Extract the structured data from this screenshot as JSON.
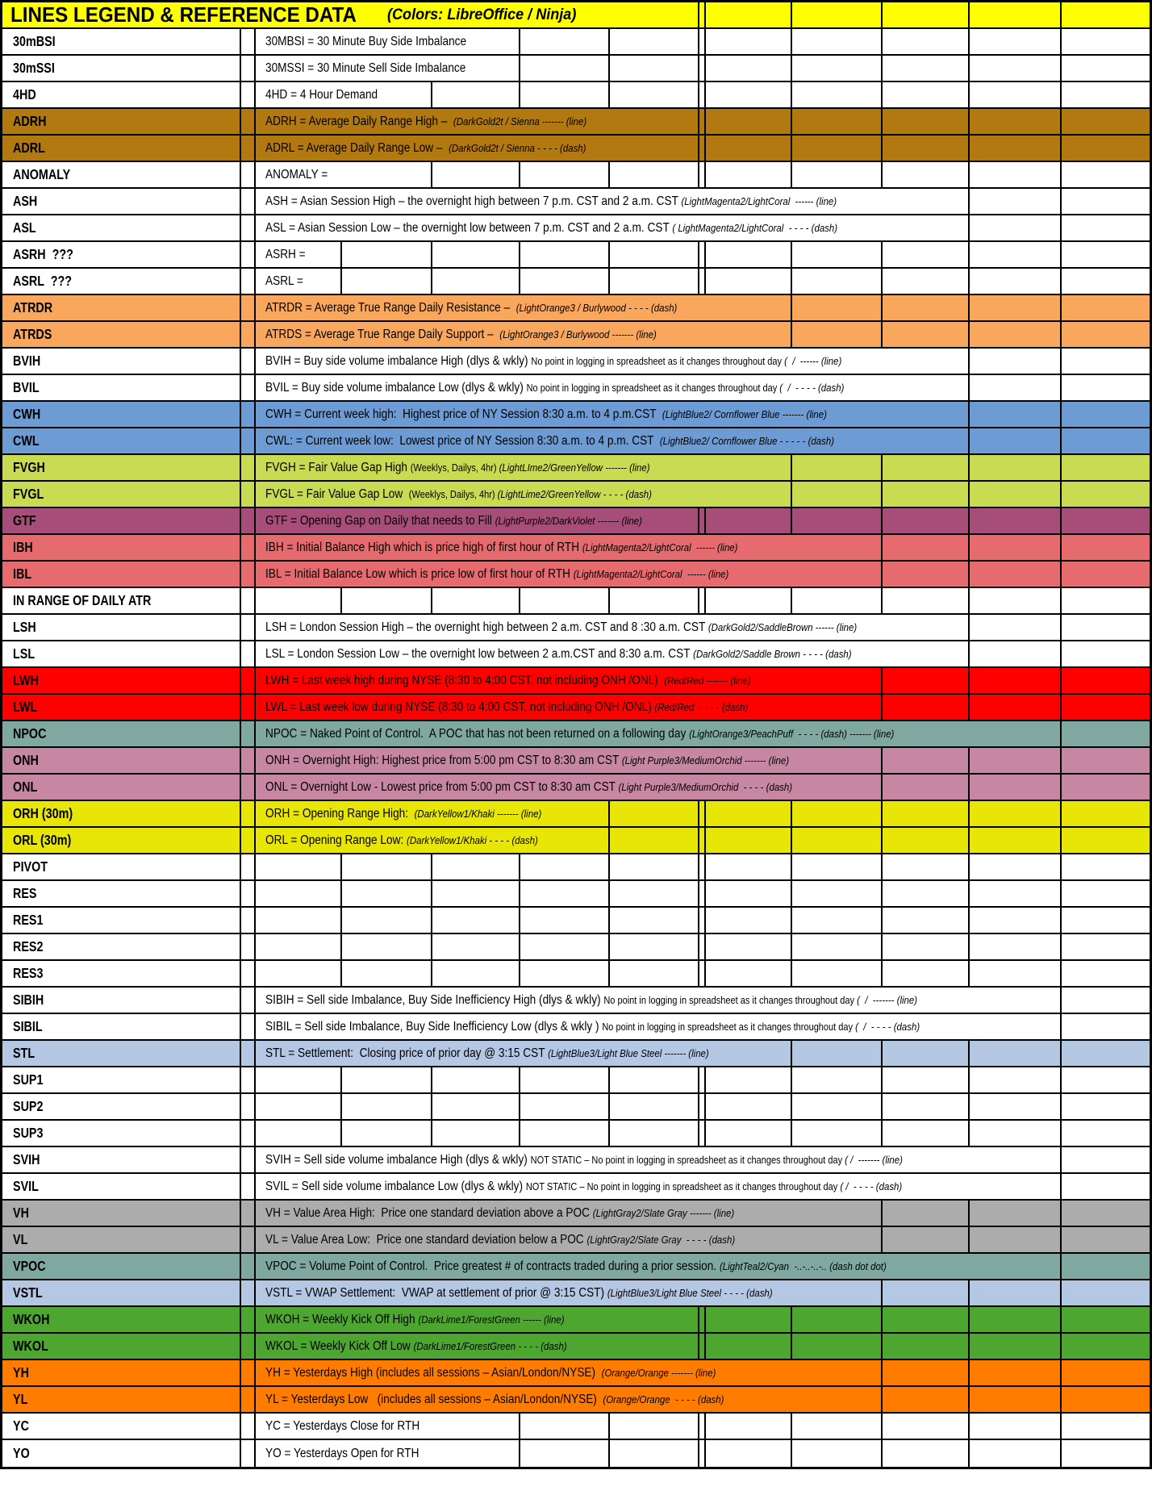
{
  "sheet": {
    "title": "LINES LEGEND & REFERENCE DATA",
    "subtitle": "(Colors: LibreOffice / Ninja)",
    "header_bg": "#FFFF00",
    "header_desc_end": 864,
    "label_col_end": 296,
    "gutter_col_end": 314,
    "grid_boundaries": [
      421,
      533,
      642,
      753,
      864,
      872,
      979,
      1091,
      1199,
      1313
    ],
    "grid_color": "#000000"
  },
  "rows": [
    {
      "code": "30mBSI",
      "bg": "#FFFFFF",
      "desc_end": 642,
      "segments": [
        [
          "m",
          "30MBSI = 30 Minute Buy Side Imbalance"
        ]
      ]
    },
    {
      "code": "30mSSI",
      "bg": "#FFFFFF",
      "desc_end": 642,
      "segments": [
        [
          "m",
          "30MSSI = 30 Minute Sell Side Imbalance"
        ]
      ]
    },
    {
      "code": "4HD",
      "bg": "#FFFFFF",
      "desc_end": 533,
      "segments": [
        [
          "m",
          "4HD = 4 Hour Demand"
        ]
      ]
    },
    {
      "code": "ADRH",
      "bg": "#B1790F",
      "desc_end": 864,
      "segments": [
        [
          "m",
          "ADRH = Average Daily Range High –  "
        ],
        [
          "n",
          "(DarkGold2t / Sienna ------- (line)"
        ]
      ]
    },
    {
      "code": "ADRL",
      "bg": "#B1790F",
      "desc_end": 864,
      "segments": [
        [
          "m",
          "ADRL = Average Daily Range Low –  "
        ],
        [
          "n",
          "(DarkGold2t / Sienna - - - - (dash)"
        ]
      ]
    },
    {
      "code": "ANOMALY",
      "bg": "#FFFFFF",
      "desc_end": 533,
      "segments": [
        [
          "m",
          "ANOMALY ="
        ]
      ]
    },
    {
      "code": "ASH",
      "bg": "#FFFFFF",
      "desc_end": 1199,
      "segments": [
        [
          "m",
          "ASH = Asian Session High – the overnight high between 7 p.m. CST and 2 a.m. CST "
        ],
        [
          "n",
          "(LightMagenta2/LightCoral  ------ (line)"
        ]
      ]
    },
    {
      "code": "ASL",
      "bg": "#FFFFFF",
      "desc_end": 1199,
      "segments": [
        [
          "m",
          "ASL = Asian Session Low – the overnight low between 7 p.m. CST and 2 a.m. CST "
        ],
        [
          "n",
          "( LightMagenta2/LightCoral  - - - - (dash)"
        ]
      ]
    },
    {
      "code": "ASRH  ???",
      "bg": "#FFFFFF",
      "desc_end": 421,
      "segments": [
        [
          "m",
          "ASRH ="
        ]
      ]
    },
    {
      "code": "ASRL  ???",
      "bg": "#FFFFFF",
      "desc_end": 421,
      "segments": [
        [
          "m",
          "ASRL ="
        ]
      ]
    },
    {
      "code": "ATRDR",
      "bg": "#F8A75C",
      "desc_end": 979,
      "segments": [
        [
          "m",
          "ATRDR = Average True Range Daily Resistance –  "
        ],
        [
          "n",
          "(LightOrange3 / Burlywood - - - - (dash)"
        ]
      ]
    },
    {
      "code": "ATRDS",
      "bg": "#F8A75C",
      "desc_end": 979,
      "segments": [
        [
          "m",
          "ATRDS = Average True Range Daily Support –  "
        ],
        [
          "n",
          "(LightOrange3 / Burlywood ------- (line)"
        ]
      ]
    },
    {
      "code": "BVIH",
      "bg": "#FFFFFF",
      "desc_end": 1199,
      "segments": [
        [
          "m",
          "BVIH = Buy side volume imbalance High (dlys & wkly) "
        ],
        [
          "s",
          "No point in logging in spreadsheet as it changes throughout day "
        ],
        [
          "n",
          "(  /  ------ (line)"
        ]
      ]
    },
    {
      "code": "BVIL",
      "bg": "#FFFFFF",
      "desc_end": 1199,
      "segments": [
        [
          "m",
          "BVIL = Buy side volume imbalance Low (dlys & wkly) "
        ],
        [
          "s",
          "No point in logging in spreadsheet as it changes throughout day "
        ],
        [
          "n",
          "(  /  - - - - (dash)"
        ]
      ]
    },
    {
      "code": "CWH",
      "bg": "#6D9BD3",
      "desc_end": 1199,
      "segments": [
        [
          "m",
          "CWH = Current week high:  Highest price of NY Session 8:30 a.m. to 4 p.m.CST  "
        ],
        [
          "n",
          "(LightBlue2/ Cornflower Blue ------- (line)"
        ]
      ]
    },
    {
      "code": "CWL",
      "bg": "#6D9BD3",
      "desc_end": 1199,
      "segments": [
        [
          "m",
          "CWL: = Current week low:  Lowest price of NY Session 8:30 a.m. to 4 p.m. CST  "
        ],
        [
          "n",
          "(LightBlue2/ Cornflower Blue - - - - - (dash)"
        ]
      ]
    },
    {
      "code": "FVGH",
      "bg": "#C9DB52",
      "desc_end": 979,
      "segments": [
        [
          "m",
          "FVGH = Fair Value Gap High "
        ],
        [
          "s",
          "(Weeklys, Dailys, 4hr) "
        ],
        [
          "n",
          "(LightLIme2/GreenYellow ------- (line)"
        ]
      ]
    },
    {
      "code": "FVGL",
      "bg": "#C9DB52",
      "desc_end": 979,
      "segments": [
        [
          "m",
          "FVGL = Fair Value Gap Low  "
        ],
        [
          "s",
          "(Weeklys, Dailys, 4hr) "
        ],
        [
          "n",
          "(LightLime2/GreenYellow - - - - (dash)"
        ]
      ]
    },
    {
      "code": "GTF",
      "bg": "#A64D79",
      "desc_end": 864,
      "segments": [
        [
          "m",
          "GTF = Opening Gap on Daily that needs to Fill "
        ],
        [
          "n",
          "(LightPurple2/DarkViolet ------- (line)"
        ]
      ]
    },
    {
      "code": "IBH",
      "bg": "#E56B6E",
      "desc_end": 1091,
      "segments": [
        [
          "m",
          "IBH = Initial Balance High which is price high of first hour of RTH "
        ],
        [
          "n",
          "(LightMagenta2/LightCoral  ------ (line)"
        ]
      ]
    },
    {
      "code": "IBL",
      "bg": "#E56B6E",
      "desc_end": 1091,
      "segments": [
        [
          "m",
          "IBL = Initial Balance Low which is price low of first hour of RTH "
        ],
        [
          "n",
          "(LightMagenta2/LightCoral  ------ (line)"
        ]
      ]
    },
    {
      "code": "IN RANGE OF DAILY ATR",
      "bg": "#FFFFFF",
      "desc_end": 421,
      "segments": []
    },
    {
      "code": "LSH",
      "bg": "#FFFFFF",
      "desc_end": 1199,
      "segments": [
        [
          "m",
          "LSH = London Session High – the overnight high between 2 a.m. CST and 8 :30 a.m. CST "
        ],
        [
          "n",
          "(DarkGold2/SaddleBrown ------ (line)"
        ]
      ]
    },
    {
      "code": "LSL",
      "bg": "#FFFFFF",
      "desc_end": 1199,
      "segments": [
        [
          "m",
          "LSL = London Session Low – the overnight low between 2 a.m.CST and 8:30 a.m. CST "
        ],
        [
          "n",
          "(DarkGold2/Saddle Brown - - - - (dash)"
        ]
      ]
    },
    {
      "code": "LWH",
      "bg": "#FF0000",
      "desc_end": 1091,
      "segments": [
        [
          "m",
          "LWH = Last week high during NYSE (8:30 to 4:00 CST, not including ONH /ONL)  "
        ],
        [
          "n",
          "(Red/Red ------- (line)"
        ]
      ]
    },
    {
      "code": "LWL",
      "bg": "#FF0000",
      "desc_end": 1091,
      "segments": [
        [
          "m",
          "LWL = Last week low during NYSE (8:30 to 4:00 CST, not including ONH /ONL) "
        ],
        [
          "n",
          "(Red/Red  - - - - (dash)"
        ]
      ]
    },
    {
      "code": "NPOC",
      "bg": "#7FA8A1",
      "desc_end": 1313,
      "segments": [
        [
          "m",
          "NPOC = Naked Point of Control.  A POC that has not been returned on a following day "
        ],
        [
          "n",
          "(LightOrange3/PeachPuff  - - - - (dash) ------- (line)"
        ]
      ]
    },
    {
      "code": "ONH",
      "bg": "#C787A2",
      "desc_end": 1091,
      "segments": [
        [
          "m",
          "ONH = Overnight High: Highest price from 5:00 pm CST to 8:30 am CST "
        ],
        [
          "n",
          "(Light Purple3/MediumOrchid ------- (line)"
        ]
      ]
    },
    {
      "code": "ONL",
      "bg": "#C787A2",
      "desc_end": 1091,
      "segments": [
        [
          "m",
          "ONL = Overnight Low - Lowest price from 5:00 pm CST to 8:30 am CST "
        ],
        [
          "n",
          "(Light Purple3/MediumOrchid  - - - - (dash)"
        ]
      ]
    },
    {
      "code": "ORH (30m)",
      "bg": "#E8E607",
      "desc_end": 753,
      "segments": [
        [
          "m",
          "ORH = Opening Range High:  "
        ],
        [
          "n",
          "(DarkYellow1/Khaki ------- (line)"
        ]
      ]
    },
    {
      "code": "ORL (30m)",
      "bg": "#E8E607",
      "desc_end": 753,
      "segments": [
        [
          "m",
          "ORL = Opening Range Low: "
        ],
        [
          "n",
          "(DarkYellow1/Khaki - - - - (dash)"
        ]
      ]
    },
    {
      "code": "PIVOT",
      "bg": "#FFFFFF",
      "desc_end": 421,
      "segments": []
    },
    {
      "code": "RES",
      "bg": "#FFFFFF",
      "desc_end": 421,
      "segments": []
    },
    {
      "code": "RES1",
      "bg": "#FFFFFF",
      "desc_end": 421,
      "segments": []
    },
    {
      "code": "RES2",
      "bg": "#FFFFFF",
      "desc_end": 421,
      "segments": []
    },
    {
      "code": "RES3",
      "bg": "#FFFFFF",
      "desc_end": 421,
      "segments": []
    },
    {
      "code": "SIBIH",
      "bg": "#FFFFFF",
      "desc_end": 1313,
      "segments": [
        [
          "m",
          "SIBIH = Sell side Imbalance, Buy Side Inefficiency High (dlys & wkly) "
        ],
        [
          "s",
          "No point in logging in spreadsheet as it changes throughout day "
        ],
        [
          "n",
          "(  /  ------- (line)"
        ]
      ]
    },
    {
      "code": "SIBIL",
      "bg": "#FFFFFF",
      "desc_end": 1313,
      "segments": [
        [
          "m",
          "SIBIL = Sell side Imbalance, Buy Side Inefficiency Low (dlys & wkly ) "
        ],
        [
          "s",
          "No point in logging in spreadsheet as it changes throughout day "
        ],
        [
          "n",
          "(  /  - - - - (dash)"
        ]
      ]
    },
    {
      "code": "STL",
      "bg": "#B4C7E3",
      "desc_end": 979,
      "segments": [
        [
          "m",
          "STL = Settlement:  Closing price of prior day @ 3:15 CST "
        ],
        [
          "n",
          "(LightBlue3/Light Blue Steel ------- (line)"
        ]
      ]
    },
    {
      "code": "SUP1",
      "bg": "#FFFFFF",
      "desc_end": 421,
      "segments": []
    },
    {
      "code": "SUP2",
      "bg": "#FFFFFF",
      "desc_end": 421,
      "segments": []
    },
    {
      "code": "SUP3",
      "bg": "#FFFFFF",
      "desc_end": 421,
      "segments": []
    },
    {
      "code": "SVIH",
      "bg": "#FFFFFF",
      "desc_end": 1313,
      "segments": [
        [
          "m",
          "SVIH = Sell side volume imbalance High (dlys & wkly) "
        ],
        [
          "s",
          "NOT STATIC – No point in logging in spreadsheet as it changes throughout day "
        ],
        [
          "n",
          "( /  ------- (line)"
        ]
      ]
    },
    {
      "code": "SVIL",
      "bg": "#FFFFFF",
      "desc_end": 1313,
      "segments": [
        [
          "m",
          "SVIL = Sell side volume imbalance Low (dlys & wkly) "
        ],
        [
          "s",
          "NOT STATIC – No point in logging in spreadsheet as it changes throughout day "
        ],
        [
          "n",
          "( /  - - - - (dash)"
        ]
      ]
    },
    {
      "code": "VH",
      "bg": "#ACACAC",
      "desc_end": 1091,
      "segments": [
        [
          "m",
          "VH = Value Area High:  Price one standard deviation above a POC "
        ],
        [
          "n",
          "(LightGray2/Slate Gray ------- (line)"
        ]
      ]
    },
    {
      "code": "VL",
      "bg": "#ACACAC",
      "desc_end": 1091,
      "segments": [
        [
          "m",
          "VL = Value Area Low:  Price one standard deviation below a POC "
        ],
        [
          "n",
          "(LightGray2/Slate Gray  - - - - (dash)"
        ]
      ]
    },
    {
      "code": "VPOC",
      "bg": "#7FA8A1",
      "desc_end": 1313,
      "segments": [
        [
          "m",
          "VPOC = Volume Point of Control.  Price greatest # of contracts traded during a prior session. "
        ],
        [
          "n",
          "(LightTeal2/Cyan  -..-..-..-.. (dash dot dot)"
        ]
      ]
    },
    {
      "code": "VSTL",
      "bg": "#B4C7E3",
      "desc_end": 1091,
      "segments": [
        [
          "m",
          "VSTL = VWAP Settlement:  VWAP at settlement of prior @ 3:15 CST) "
        ],
        [
          "n",
          "(LightBlue3/Light Blue Steel - - - - (dash)"
        ]
      ]
    },
    {
      "code": "WKOH",
      "bg": "#4DA62F",
      "desc_end": 864,
      "segments": [
        [
          "m",
          "WKOH = Weekly Kick Off High "
        ],
        [
          "n",
          "(DarkLime1/ForestGreen ------ (line)"
        ]
      ]
    },
    {
      "code": "WKOL",
      "bg": "#4DA62F",
      "desc_end": 864,
      "segments": [
        [
          "m",
          "WKOL = Weekly Kick Off Low "
        ],
        [
          "n",
          "(DarkLime1/ForestGreen - - - - (dash)"
        ]
      ]
    },
    {
      "code": "YH",
      "bg": "#FF7C00",
      "desc_end": 1091,
      "segments": [
        [
          "m",
          "YH = Yesterdays High (includes all sessions – Asian/London/NYSE)  "
        ],
        [
          "n",
          "(Orange/Orange ------- (line)"
        ]
      ]
    },
    {
      "code": "YL",
      "bg": "#FF7C00",
      "desc_end": 1091,
      "segments": [
        [
          "m",
          "YL = Yesterdays Low   (includes all sessions – Asian/London/NYSE)  "
        ],
        [
          "n",
          "(Orange/Orange  - - - - (dash)"
        ]
      ]
    },
    {
      "code": "YC",
      "bg": "#FFFFFF",
      "desc_end": 642,
      "segments": [
        [
          "m",
          "YC = Yesterdays Close for RTH"
        ]
      ]
    },
    {
      "code": "YO",
      "bg": "#FFFFFF",
      "desc_end": 642,
      "segments": [
        [
          "m",
          "YO = Yesterdays Open for RTH"
        ]
      ]
    }
  ]
}
